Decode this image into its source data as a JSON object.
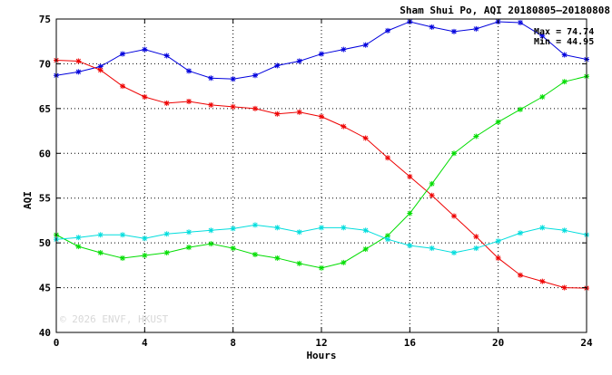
{
  "chart_data": {
    "type": "line",
    "title": "Sham Shui Po, AQI 20180805—20180808",
    "xlabel": "Hours",
    "ylabel": "AQI",
    "xlim": [
      0,
      24
    ],
    "ylim": [
      40,
      75
    ],
    "xticks": [
      0,
      4,
      8,
      12,
      16,
      20,
      24
    ],
    "yticks": [
      40,
      45,
      50,
      55,
      60,
      65,
      70,
      75
    ],
    "grid": true,
    "annotations": {
      "max": "Max = 74.74",
      "min": "Min = 44.95"
    },
    "watermark": "© 2026  ENVF, HKUST",
    "x": [
      0,
      1,
      2,
      3,
      4,
      5,
      6,
      7,
      8,
      9,
      10,
      11,
      12,
      13,
      14,
      15,
      16,
      17,
      18,
      19,
      20,
      21,
      22,
      23,
      24
    ],
    "series": [
      {
        "color": "#0000dd",
        "values": [
          68.7,
          69.1,
          69.7,
          71.1,
          71.6,
          70.9,
          69.2,
          68.4,
          68.3,
          68.7,
          69.8,
          70.3,
          71.1,
          71.6,
          72.1,
          73.7,
          74.7,
          74.1,
          73.6,
          73.9,
          74.7,
          74.6,
          73.1,
          71.0,
          70.5
        ]
      },
      {
        "color": "#ee0000",
        "values": [
          70.4,
          70.3,
          69.3,
          67.5,
          66.3,
          65.6,
          65.8,
          65.4,
          65.2,
          65.0,
          64.4,
          64.6,
          64.1,
          63.0,
          61.7,
          59.5,
          57.4,
          55.3,
          53.0,
          50.7,
          48.3,
          46.4,
          45.7,
          45.0,
          44.95
        ]
      },
      {
        "color": "#00dd00",
        "values": [
          50.9,
          49.6,
          48.9,
          48.3,
          48.6,
          48.9,
          49.5,
          49.9,
          49.4,
          48.7,
          48.3,
          47.7,
          47.2,
          47.8,
          49.3,
          50.8,
          53.3,
          56.6,
          60.0,
          61.9,
          63.5,
          64.9,
          66.3,
          68.0,
          68.6
        ]
      },
      {
        "color": "#00dddd",
        "values": [
          50.4,
          50.6,
          50.9,
          50.9,
          50.5,
          51.0,
          51.2,
          51.4,
          51.6,
          52.0,
          51.7,
          51.2,
          51.7,
          51.7,
          51.4,
          50.4,
          49.7,
          49.4,
          48.9,
          49.4,
          50.2,
          51.1,
          51.7,
          51.4,
          50.9
        ]
      }
    ]
  }
}
